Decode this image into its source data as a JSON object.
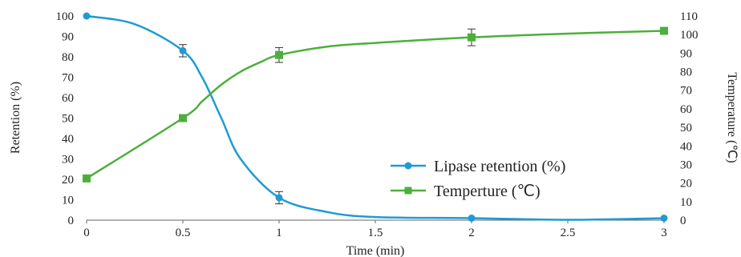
{
  "chart_data": {
    "type": "line",
    "xlabel": "Time (min)",
    "ylabel_left": "Retention (%)",
    "ylabel_right": "Temperature (℃)",
    "x_ticks": [
      "0",
      "0.5",
      "1",
      "1.5",
      "2",
      "2.5",
      "3"
    ],
    "y_left_ticks": [
      "0",
      "10",
      "20",
      "30",
      "40",
      "50",
      "60",
      "70",
      "80",
      "90",
      "100"
    ],
    "y_right_ticks": [
      "0",
      "10",
      "20",
      "30",
      "40",
      "50",
      "60",
      "70",
      "80",
      "90",
      "100",
      "110"
    ],
    "xlim": [
      0,
      3
    ],
    "ylim_left": [
      0,
      100
    ],
    "ylim_right": [
      0,
      110
    ],
    "grid": false,
    "legend_position": "center-right",
    "series": [
      {
        "name": "Lipase retention (%)",
        "axis": "left",
        "color": "#1f9ad6",
        "marker": "circle",
        "x": [
          0,
          0.5,
          1,
          2,
          3
        ],
        "y": [
          100,
          83,
          11,
          1,
          1
        ],
        "error": [
          0,
          3,
          3,
          0,
          0
        ],
        "smooth_x": [
          0,
          0.25,
          0.5,
          0.6,
          0.7,
          0.8,
          1,
          1.25,
          1.5,
          2,
          2.5,
          3
        ],
        "smooth_y": [
          100,
          96,
          83,
          70,
          50,
          30,
          11,
          4,
          1.5,
          1,
          0.2,
          1
        ]
      },
      {
        "name": "Temperture (℃)",
        "axis": "right",
        "color": "#4caf3a",
        "marker": "square",
        "x": [
          0,
          0.5,
          1,
          2,
          3
        ],
        "y": [
          22.5,
          55,
          89,
          98.5,
          102
        ],
        "error": [
          0,
          0,
          4,
          4.5,
          0
        ],
        "smooth_x": [
          0,
          0.5,
          0.6,
          0.7,
          0.8,
          0.9,
          1,
          1.25,
          1.5,
          2,
          2.5,
          3
        ],
        "smooth_y": [
          22.5,
          55,
          64,
          73,
          80,
          85,
          89,
          93.5,
          95.5,
          98.5,
          100.5,
          102
        ]
      }
    ]
  }
}
